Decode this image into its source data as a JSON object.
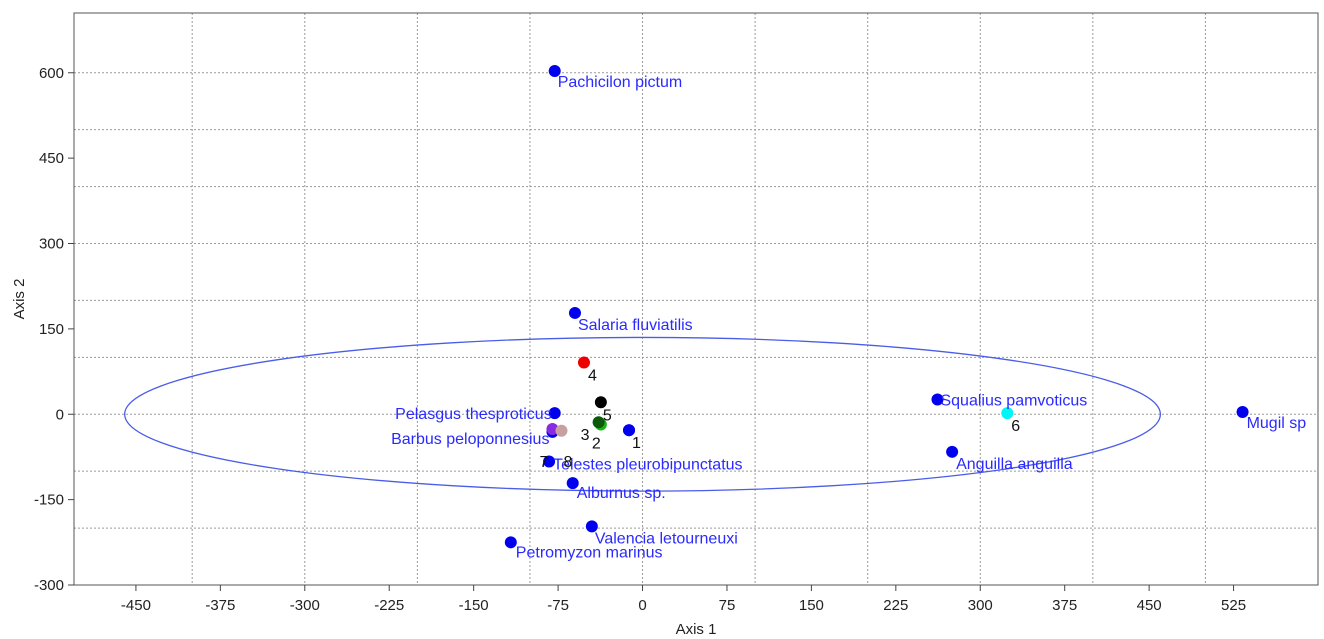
{
  "chart_data": {
    "type": "scatter",
    "xlabel": "Axis 1",
    "ylabel": "Axis 2",
    "xlim": [
      -505,
      600
    ],
    "ylim": [
      -300,
      705
    ],
    "xticks": [
      -450,
      -375,
      -300,
      -225,
      -150,
      -75,
      0,
      75,
      150,
      225,
      300,
      375,
      450,
      525
    ],
    "yticks": [
      -300,
      -150,
      0,
      150,
      300,
      450,
      600
    ],
    "grid": true,
    "ellipse": {
      "cx": 0,
      "cy": 0,
      "rx": 460,
      "ry": 135,
      "color": "#4a5de8"
    },
    "series": [
      {
        "group": "species",
        "color": "#0000ee",
        "label_color": "#2a2aff",
        "points": [
          {
            "label": "Pachicilon pictum",
            "x": -78,
            "y": 603
          },
          {
            "label": "Salaria fluviatilis",
            "x": -60,
            "y": 178
          },
          {
            "label": "Pelasgus thesproticus",
            "x": -78,
            "y": 2
          },
          {
            "label": "Barbus peloponnesius",
            "x": -80,
            "y": -31
          },
          {
            "label": "Telestes pleurobipunctatus",
            "x": -83,
            "y": -83
          },
          {
            "label": "Alburnus sp.",
            "x": -62,
            "y": -121
          },
          {
            "label": "Valencia letourneuxi",
            "x": -45,
            "y": -197
          },
          {
            "label": "Petromyzon marinus",
            "x": -117,
            "y": -225
          },
          {
            "label": "Squalius pamvoticus",
            "x": 262,
            "y": 26
          },
          {
            "label": "Anguilla anguilla",
            "x": 275,
            "y": -66
          },
          {
            "label": "Mugil sp",
            "x": 533,
            "y": 4
          },
          {
            "label": "",
            "x": -12,
            "y": -28
          }
        ]
      },
      {
        "group": "sites",
        "points": [
          {
            "label": "1",
            "x": -12,
            "y": -28,
            "color": "#0000ee"
          },
          {
            "label": "2",
            "x": -37,
            "y": -18,
            "color": "#1bb31b"
          },
          {
            "label": "3",
            "x": -39,
            "y": -14,
            "color": "#0a5a0a"
          },
          {
            "label": "4",
            "x": -52,
            "y": 91,
            "color": "#ee0000"
          },
          {
            "label": "5",
            "x": -37,
            "y": 21,
            "color": "#000000"
          },
          {
            "label": "6",
            "x": 324,
            "y": 2,
            "color": "#00f5f5"
          },
          {
            "label": "7",
            "x": -80,
            "y": -26,
            "color": "#8a2be2"
          },
          {
            "label": "8",
            "x": -72,
            "y": -29,
            "color": "#c8a0a0"
          }
        ]
      }
    ]
  }
}
